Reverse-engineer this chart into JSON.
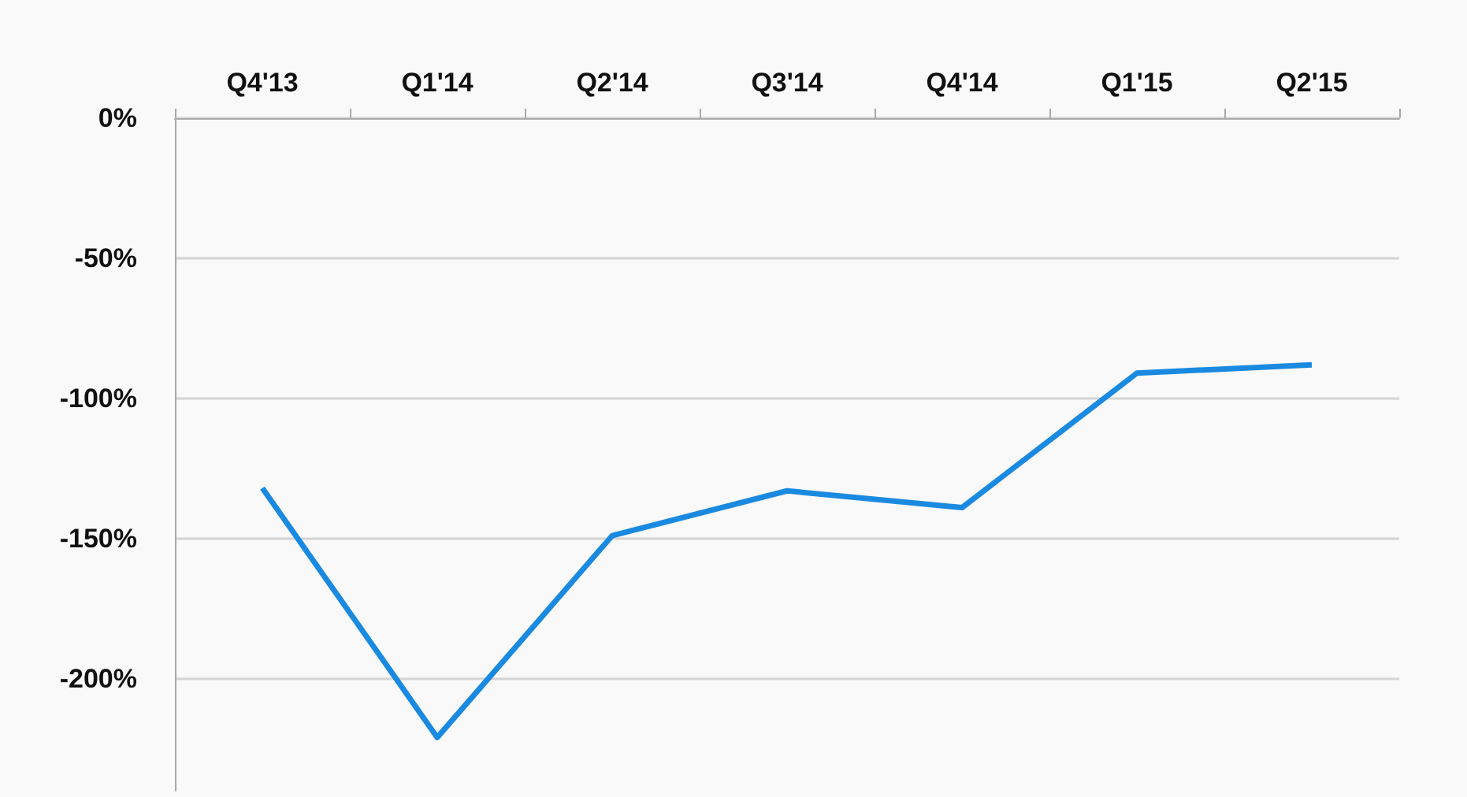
{
  "chart_data": {
    "type": "line",
    "categories": [
      "Q4'13",
      "Q1'14",
      "Q2'14",
      "Q3'14",
      "Q4'14",
      "Q1'15",
      "Q2'15"
    ],
    "series": [
      {
        "color": "#1a8ae0",
        "values": [
          -132,
          -221,
          -149,
          -133,
          -139,
          -91,
          -88
        ]
      }
    ],
    "ylim": [
      -240,
      0
    ],
    "yticks": [
      {
        "value": 0,
        "label": "0%"
      },
      {
        "value": -50,
        "label": "-50%"
      },
      {
        "value": -100,
        "label": "-100%"
      },
      {
        "value": -150,
        "label": "-150%"
      },
      {
        "value": -200,
        "label": "-200%"
      }
    ],
    "grid": "y",
    "marker": "none",
    "line_style": "solid"
  }
}
